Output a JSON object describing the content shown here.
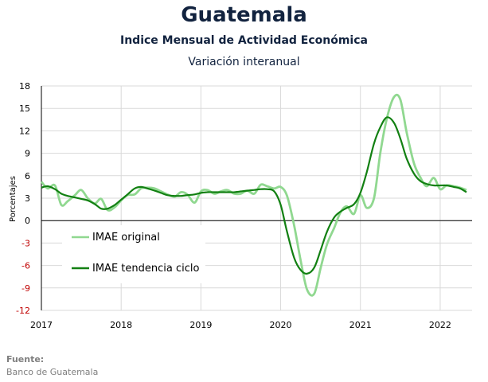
{
  "header": {
    "title": "Guatemala",
    "subtitle": "Indice Mensual de  Actividad Económica",
    "subtitle2": "Variación interanual"
  },
  "source": {
    "label": "Fuente:",
    "value": "Banco de Guatemala"
  },
  "colors": {
    "original": "#90d890",
    "trend": "#128012",
    "grid": "#d9d9d9",
    "negative_tick": "#c00000",
    "positive_tick": "#000000"
  },
  "chart_data": {
    "type": "line",
    "title": "Guatemala",
    "subtitle": "Indice Mensual de  Actividad Económica — Variación interanual",
    "ylabel": "Porcentajes",
    "xlabel": "",
    "ylim": [
      -12,
      18
    ],
    "yticks": [
      -12,
      -9,
      -6,
      -3,
      0,
      3,
      6,
      9,
      12,
      15,
      18
    ],
    "xlim": [
      2017,
      2022.4
    ],
    "xticks": [
      2017,
      2018,
      2019,
      2020,
      2021,
      2022
    ],
    "grid": true,
    "legend": "left-center",
    "series": [
      {
        "name": "IMAE original",
        "x": [
          2017.0,
          2017.08,
          2017.17,
          2017.25,
          2017.33,
          2017.42,
          2017.5,
          2017.58,
          2017.67,
          2017.75,
          2017.83,
          2017.92,
          2018.0,
          2018.08,
          2018.17,
          2018.25,
          2018.33,
          2018.42,
          2018.5,
          2018.58,
          2018.67,
          2018.75,
          2018.83,
          2018.92,
          2019.0,
          2019.08,
          2019.17,
          2019.25,
          2019.33,
          2019.42,
          2019.5,
          2019.58,
          2019.67,
          2019.75,
          2019.83,
          2019.92,
          2020.0,
          2020.08,
          2020.17,
          2020.25,
          2020.33,
          2020.42,
          2020.5,
          2020.58,
          2020.67,
          2020.75,
          2020.83,
          2020.92,
          2021.0,
          2021.08,
          2021.17,
          2021.25,
          2021.33,
          2021.42,
          2021.5,
          2021.58,
          2021.67,
          2021.75,
          2021.83,
          2021.92,
          2022.0,
          2022.08,
          2022.17,
          2022.25,
          2022.33
        ],
        "y": [
          5.2,
          4.3,
          4.7,
          2.1,
          2.6,
          3.4,
          4.1,
          3.0,
          2.3,
          2.9,
          1.4,
          1.8,
          2.7,
          3.4,
          3.5,
          4.3,
          4.4,
          4.3,
          3.9,
          3.5,
          3.2,
          3.8,
          3.5,
          2.4,
          3.9,
          4.1,
          3.6,
          3.9,
          4.1,
          3.6,
          3.6,
          4.0,
          3.6,
          4.8,
          4.6,
          4.3,
          4.5,
          3.3,
          -0.7,
          -5.3,
          -9.2,
          -9.8,
          -6.4,
          -3.2,
          -1.0,
          1.1,
          1.9,
          0.9,
          3.4,
          1.7,
          3.0,
          9.1,
          13.6,
          16.5,
          16.2,
          11.8,
          7.7,
          5.8,
          4.6,
          5.7,
          4.2,
          4.7,
          4.6,
          4.4,
          4.1
        ]
      },
      {
        "name": "IMAE tendencia ciclo",
        "x": [
          2017.0,
          2017.08,
          2017.17,
          2017.25,
          2017.33,
          2017.42,
          2017.5,
          2017.58,
          2017.67,
          2017.75,
          2017.83,
          2017.92,
          2018.0,
          2018.08,
          2018.17,
          2018.25,
          2018.33,
          2018.42,
          2018.5,
          2018.58,
          2018.67,
          2018.75,
          2018.83,
          2018.92,
          2019.0,
          2019.08,
          2019.17,
          2019.25,
          2019.33,
          2019.42,
          2019.5,
          2019.58,
          2019.67,
          2019.75,
          2019.83,
          2019.92,
          2020.0,
          2020.08,
          2020.17,
          2020.25,
          2020.33,
          2020.42,
          2020.5,
          2020.58,
          2020.67,
          2020.75,
          2020.83,
          2020.92,
          2021.0,
          2021.08,
          2021.17,
          2021.25,
          2021.33,
          2021.42,
          2021.5,
          2021.58,
          2021.67,
          2021.75,
          2021.83,
          2021.92,
          2022.0,
          2022.08,
          2022.17,
          2022.25,
          2022.33
        ],
        "y": [
          4.4,
          4.6,
          4.2,
          3.6,
          3.3,
          3.1,
          2.9,
          2.7,
          2.2,
          1.6,
          1.6,
          2.1,
          2.8,
          3.5,
          4.3,
          4.5,
          4.3,
          4.0,
          3.7,
          3.4,
          3.3,
          3.3,
          3.4,
          3.5,
          3.7,
          3.8,
          3.8,
          3.8,
          3.8,
          3.8,
          3.9,
          4.0,
          4.1,
          4.2,
          4.2,
          3.9,
          2.1,
          -1.5,
          -5.0,
          -6.6,
          -7.1,
          -6.3,
          -4.0,
          -1.5,
          0.4,
          1.2,
          1.7,
          2.2,
          3.7,
          6.5,
          10.3,
          12.5,
          13.8,
          13.1,
          11.0,
          8.3,
          6.3,
          5.3,
          4.9,
          4.7,
          4.7,
          4.7,
          4.5,
          4.3,
          3.8
        ]
      }
    ]
  }
}
